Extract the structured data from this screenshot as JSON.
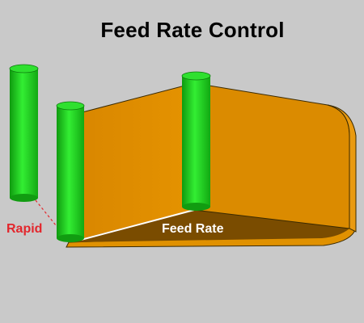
{
  "title": "Feed Rate Control",
  "labels": {
    "rapid": "Rapid",
    "feed_rate": "Feed Rate"
  },
  "colors": {
    "background": "#c9c9c9",
    "wall": "#dc8a00",
    "floor": "#7a4c00",
    "tool": "#22cc22",
    "rapid_text": "#e3262c",
    "feed_text": "#ffffff"
  }
}
